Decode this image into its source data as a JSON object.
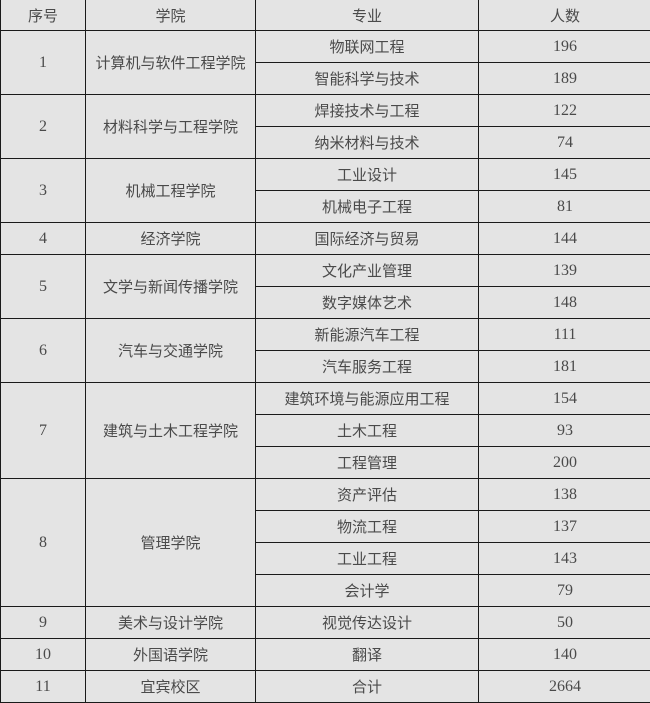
{
  "headers": {
    "index": "序号",
    "college": "学院",
    "major": "专业",
    "count": "人数"
  },
  "groups": [
    {
      "index": "1",
      "college": "计算机与软件工程学院",
      "majors": [
        {
          "name": "物联网工程",
          "count": "196"
        },
        {
          "name": "智能科学与技术",
          "count": "189"
        }
      ]
    },
    {
      "index": "2",
      "college": "材料科学与工程学院",
      "majors": [
        {
          "name": "焊接技术与工程",
          "count": "122"
        },
        {
          "name": "纳米材料与技术",
          "count": "74"
        }
      ]
    },
    {
      "index": "3",
      "college": "机械工程学院",
      "majors": [
        {
          "name": "工业设计",
          "count": "145"
        },
        {
          "name": "机械电子工程",
          "count": "81"
        }
      ]
    },
    {
      "index": "4",
      "college": "经济学院",
      "majors": [
        {
          "name": "国际经济与贸易",
          "count": "144"
        }
      ]
    },
    {
      "index": "5",
      "college": "文学与新闻传播学院",
      "majors": [
        {
          "name": "文化产业管理",
          "count": "139"
        },
        {
          "name": "数字媒体艺术",
          "count": "148"
        }
      ]
    },
    {
      "index": "6",
      "college": "汽车与交通学院",
      "majors": [
        {
          "name": "新能源汽车工程",
          "count": "111"
        },
        {
          "name": "汽车服务工程",
          "count": "181"
        }
      ]
    },
    {
      "index": "7",
      "college": "建筑与土木工程学院",
      "majors": [
        {
          "name": "建筑环境与能源应用工程",
          "count": "154"
        },
        {
          "name": "土木工程",
          "count": "93"
        },
        {
          "name": "工程管理",
          "count": "200"
        }
      ]
    },
    {
      "index": "8",
      "college": "管理学院",
      "majors": [
        {
          "name": "资产评估",
          "count": "138"
        },
        {
          "name": "物流工程",
          "count": "137"
        },
        {
          "name": "工业工程",
          "count": "143"
        },
        {
          "name": "会计学",
          "count": "79"
        }
      ]
    },
    {
      "index": "9",
      "college": "美术与设计学院",
      "majors": [
        {
          "name": "视觉传达设计",
          "count": "50"
        }
      ]
    },
    {
      "index": "10",
      "college": "外国语学院",
      "majors": [
        {
          "name": "翻译",
          "count": "140"
        }
      ]
    },
    {
      "index": "11",
      "college": "宜宾校区",
      "majors": [
        {
          "name": "合计",
          "count": "2664"
        }
      ]
    }
  ]
}
